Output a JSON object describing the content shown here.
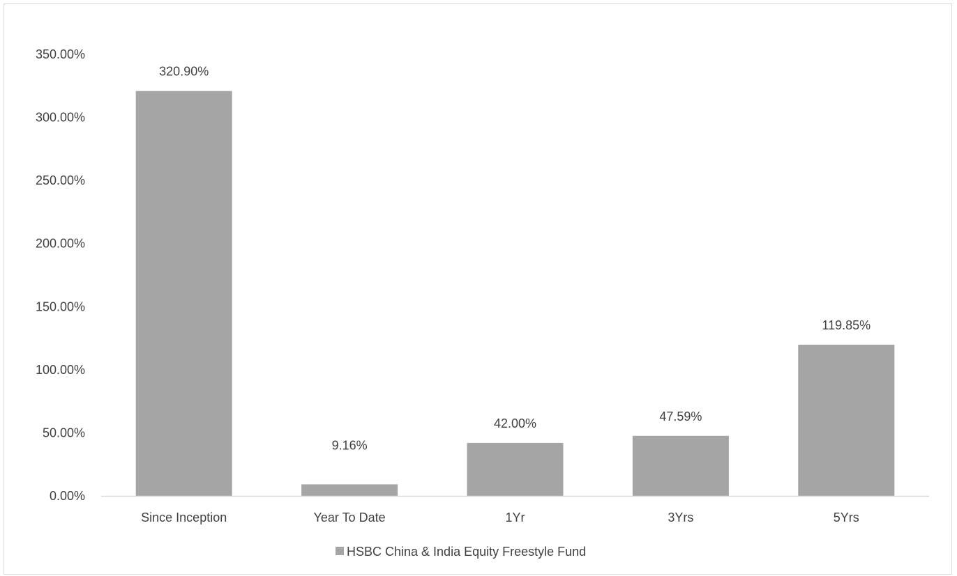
{
  "chart_data": {
    "type": "bar",
    "title": "",
    "xlabel": "",
    "ylabel": "",
    "categories": [
      "Since Inception",
      "Year To Date",
      "1Yr",
      "3Yrs",
      "5Yrs"
    ],
    "series": [
      {
        "name": "HSBC China & India Equity Freestyle Fund",
        "values": [
          320.9,
          9.16,
          42.0,
          47.59,
          119.85
        ],
        "data_labels": [
          "320.90%",
          "9.16%",
          "42.00%",
          "47.59%",
          "119.85%"
        ],
        "color": "#a5a5a5"
      }
    ],
    "ylim": [
      0,
      350
    ],
    "yticks": [
      0,
      50,
      100,
      150,
      200,
      250,
      300,
      350
    ],
    "ytick_labels": [
      "0.00%",
      "50.00%",
      "100.00%",
      "150.00%",
      "200.00%",
      "250.00%",
      "300.00%",
      "350.00%"
    ],
    "grid": false,
    "legend": {
      "position": "bottom",
      "entries": [
        "HSBC China & India Equity Freestyle Fund"
      ]
    },
    "colors": {
      "bar": "#a5a5a5",
      "axis": "#d9d9d9",
      "text": "#404040",
      "border": "#d9d9d9"
    }
  }
}
